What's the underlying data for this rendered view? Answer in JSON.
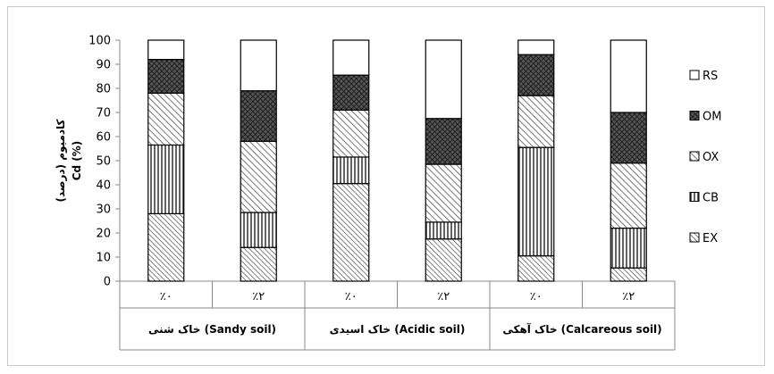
{
  "chart_data": {
    "type": "bar",
    "stacked": true,
    "ylabel_fa": "کادمیوم (درصد)",
    "ylabel": "Cd (%)",
    "ylim": [
      0,
      100
    ],
    "yticks": [
      0,
      10,
      20,
      30,
      40,
      50,
      60,
      70,
      80,
      90,
      100
    ],
    "categories": [
      "٪۰",
      "٪۲",
      "٪۰",
      "٪۲",
      "٪۰",
      "٪۲"
    ],
    "groups": [
      {
        "label": "خاک شنی (Sandy soil)",
        "span": [
          0,
          1
        ]
      },
      {
        "label": "خاک اسیدی (Acidic soil)",
        "span": [
          2,
          3
        ]
      },
      {
        "label": "خاک آهکی (Calcareous soil)",
        "span": [
          4,
          5
        ]
      }
    ],
    "series": [
      {
        "name": "EX",
        "pattern": "diag-fine",
        "values": [
          28,
          14,
          40.5,
          17.5,
          10.5,
          5.5
        ]
      },
      {
        "name": "CB",
        "pattern": "vertical",
        "values": [
          28.5,
          14.5,
          11,
          7,
          45,
          16.5
        ]
      },
      {
        "name": "OX",
        "pattern": "diag-wide",
        "values": [
          21.5,
          29.5,
          19.5,
          24,
          21.5,
          27
        ]
      },
      {
        "name": "OM",
        "pattern": "crosshatch",
        "values": [
          14,
          21,
          14.5,
          19,
          17,
          21
        ]
      },
      {
        "name": "RS",
        "pattern": "white",
        "values": [
          8,
          21,
          14.5,
          32.5,
          6,
          30
        ]
      }
    ],
    "legend_order": [
      "RS",
      "OM",
      "OX",
      "CB",
      "EX"
    ],
    "legend_position": "right",
    "grid": false
  }
}
